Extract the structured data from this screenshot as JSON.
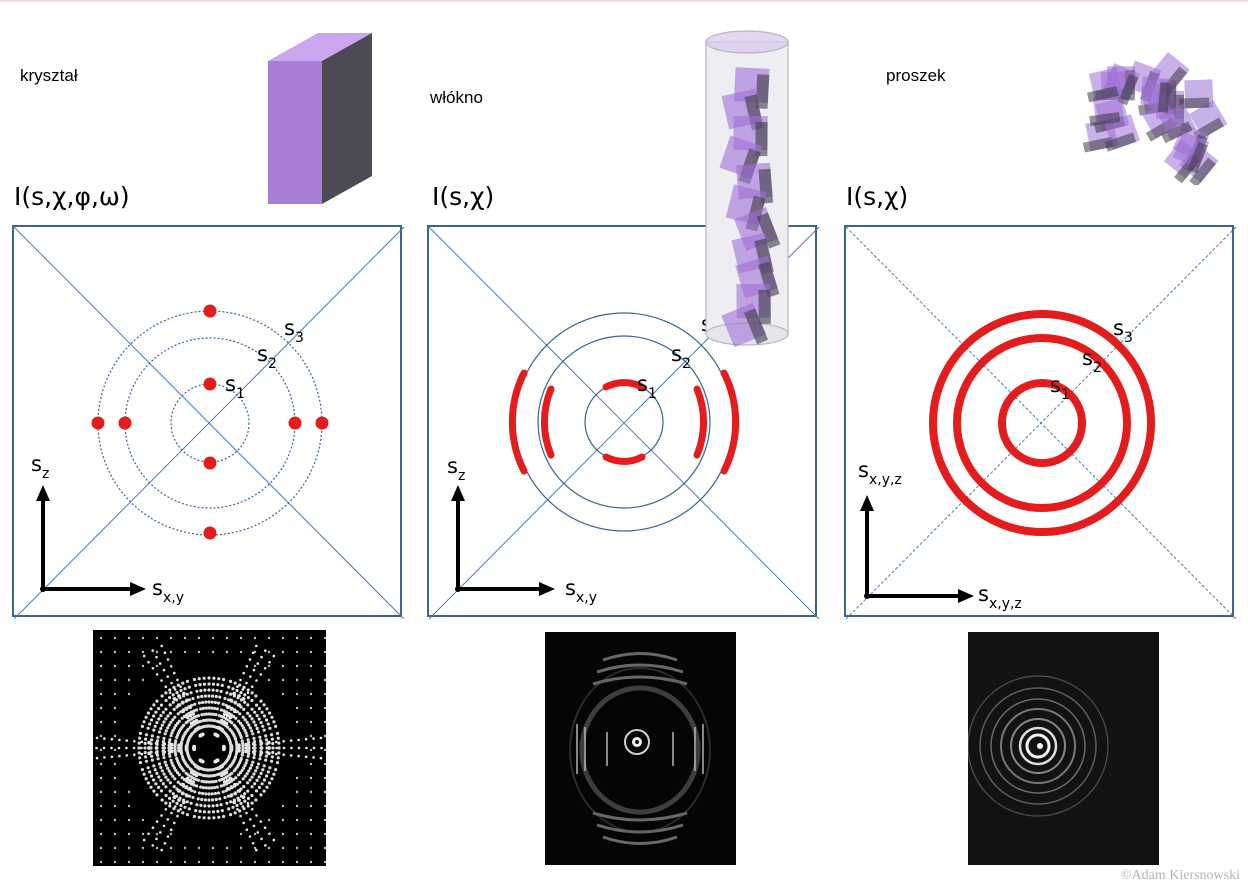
{
  "columns": [
    {
      "id": "crystal",
      "sample_label": "kryształ",
      "intensity_formula": "I(s,χ,φ,ω)",
      "ring_labels": [
        "s",
        "s",
        "s"
      ],
      "ring_subscripts": [
        "1",
        "2",
        "3"
      ],
      "vertical_axis": {
        "symbol": "s",
        "subscript": "z"
      },
      "horizontal_axis": {
        "symbol": "s",
        "subscript": "x,y"
      }
    },
    {
      "id": "fiber",
      "sample_label": "włókno",
      "intensity_formula": "I(s,χ)",
      "ring_labels": [
        "s",
        "s",
        "s"
      ],
      "ring_subscripts": [
        "1",
        "2",
        "3"
      ],
      "vertical_axis": {
        "symbol": "s",
        "subscript": "z"
      },
      "horizontal_axis": {
        "symbol": "s",
        "subscript": "x,y"
      }
    },
    {
      "id": "powder",
      "sample_label": "proszek",
      "intensity_formula": "I(s,χ)",
      "ring_labels": [
        "s",
        "s",
        "s"
      ],
      "ring_subscripts": [
        "1",
        "2",
        "3"
      ],
      "vertical_axis": {
        "symbol": "s",
        "subscript": "x,y,z"
      },
      "horizontal_axis": {
        "symbol": "s",
        "subscript": "x,y,z"
      }
    }
  ],
  "copyright": "©Adam Kiersnowski",
  "colors": {
    "panel_border": "#3a6496",
    "diagonal": "#4a7ab8",
    "ring_dotted": "#3a6496",
    "reflection_red": "#e31d1d",
    "crystal_face": "#a97dd6",
    "crystal_dark": "#4d4a55"
  }
}
